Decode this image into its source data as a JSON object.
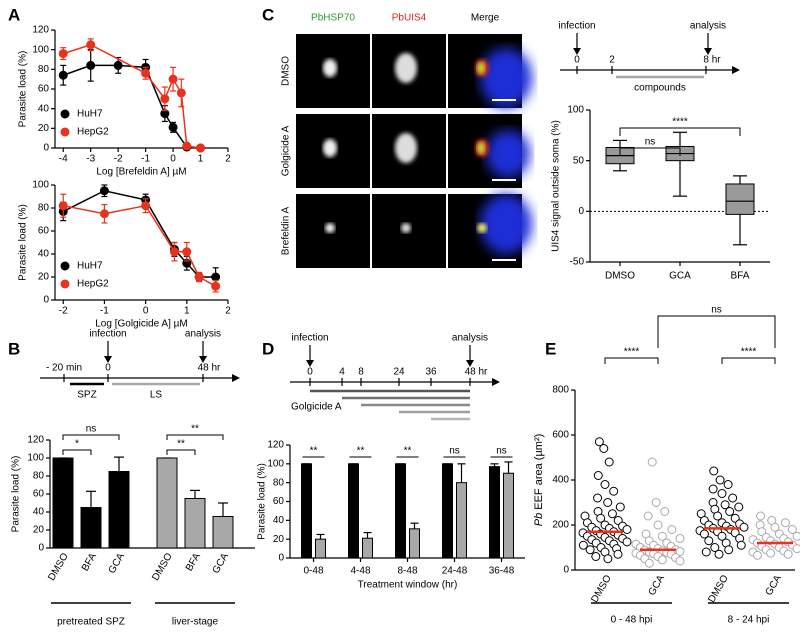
{
  "figure": {
    "panels": [
      "A",
      "B",
      "C",
      "D",
      "E"
    ],
    "images": {
      "columns": [
        "PbHSP70",
        "PbUIS4",
        "Merge"
      ],
      "rows": [
        "DMSO",
        "Golgicide A",
        "Brefeldin A"
      ]
    },
    "timelines": {
      "B": {
        "start": "infection",
        "end": "analysis",
        "ticks": [
          "- 20 min",
          "0",
          "48 hr"
        ],
        "bars": [
          "SPZ",
          "LS"
        ]
      },
      "C": {
        "start": "infection",
        "end": "analysis",
        "ticks": [
          "0",
          "2",
          "8 hr"
        ],
        "bars": [
          "compounds"
        ]
      },
      "D": {
        "start": "infection",
        "end": "analysis",
        "ticks": [
          "0",
          "4",
          "8",
          "24",
          "36",
          "48 hr"
        ],
        "bars": [
          "Golgicide A"
        ]
      }
    }
  },
  "chart_data": [
    {
      "type": "line",
      "x_label": "Log [Brefeldin A] µM",
      "y_label": "Parasite load (%)",
      "xlim": [
        -4.3,
        2
      ],
      "xticks": [
        -4,
        -3,
        -2,
        -1,
        0,
        1,
        2
      ],
      "ylim": [
        0,
        120
      ],
      "yticks": [
        0,
        20,
        40,
        60,
        80,
        100,
        120
      ],
      "legend": "lower-left",
      "series": [
        {
          "name": "HuH7",
          "color": "#000000",
          "x": [
            -4,
            -3,
            -2,
            -1,
            -0.3,
            0,
            0.5,
            1
          ],
          "values": [
            74,
            84,
            84,
            82,
            35,
            21,
            1,
            0
          ],
          "errors": [
            10,
            16,
            8,
            8,
            8,
            5,
            1,
            1
          ]
        },
        {
          "name": "HepG2",
          "color": "#e8321e",
          "x": [
            -4,
            -3,
            -1,
            -0.3,
            0,
            0.3,
            0.5,
            1
          ],
          "values": [
            96,
            105,
            76,
            50,
            70,
            56,
            2,
            0
          ],
          "errors": [
            6,
            6,
            6,
            12,
            12,
            14,
            2,
            1
          ]
        }
      ]
    },
    {
      "type": "line",
      "x_label": "Log [Golgicide A] µM",
      "y_label": "Parasite load (%)",
      "xlim": [
        -2.2,
        2
      ],
      "xticks": [
        -2,
        -1,
        0,
        1,
        2
      ],
      "ylim": [
        0,
        100
      ],
      "yticks": [
        0,
        20,
        40,
        60,
        80,
        100
      ],
      "legend": "lower-left",
      "series": [
        {
          "name": "HuH7",
          "color": "#000000",
          "x": [
            -2,
            -1,
            0,
            0.7,
            1,
            1.3,
            1.7
          ],
          "values": [
            77,
            95,
            87,
            44,
            32,
            20,
            20
          ],
          "errors": [
            8,
            5,
            5,
            6,
            6,
            3,
            8
          ]
        },
        {
          "name": "HepG2",
          "color": "#e8321e",
          "x": [
            -2,
            -1,
            0,
            0.7,
            1,
            1.3,
            1.7
          ],
          "values": [
            82,
            75,
            82,
            42,
            42,
            20,
            12
          ],
          "errors": [
            10,
            8,
            6,
            8,
            8,
            4,
            5
          ]
        }
      ]
    },
    {
      "type": "box",
      "y_label": "UIS4 signal outside soma (%)",
      "categories": [
        "DMSO",
        "GCA",
        "BFA"
      ],
      "ylim": [
        -50,
        100
      ],
      "yticks": [
        -50,
        0,
        50,
        100
      ],
      "color": "#9a9a9a",
      "zero_line": true,
      "boxes": [
        {
          "min": 40,
          "q1": 47,
          "median": 55,
          "q3": 63,
          "max": 70
        },
        {
          "min": 15,
          "q1": 50,
          "median": 57,
          "q3": 64,
          "max": 78
        },
        {
          "min": -33,
          "q1": -3,
          "median": 10,
          "q3": 27,
          "max": 35
        }
      ],
      "annotations": [
        "ns",
        "****"
      ]
    },
    {
      "type": "bar",
      "y_label": "Parasite load (%)",
      "categories": [
        "DMSO",
        "BFA",
        "GCA",
        "DMSO",
        "BFA",
        "GCA"
      ],
      "values": [
        100,
        45,
        85,
        100,
        55,
        35
      ],
      "errors": [
        0,
        18,
        16,
        0,
        9,
        15
      ],
      "colors": [
        "#000000",
        "#000000",
        "#000000",
        "#a8a8a8",
        "#a8a8a8",
        "#a8a8a8"
      ],
      "ylim": [
        0,
        120
      ],
      "yticks": [
        0,
        20,
        40,
        60,
        80,
        100,
        120
      ],
      "groups": [
        "pretreated SPZ",
        "liver-stage"
      ],
      "annotations": [
        "*",
        "ns",
        "**",
        "**"
      ]
    },
    {
      "type": "grouped-bar",
      "x_label": "Treatment window (hr)",
      "y_label": "Parasite load (%)",
      "categories": [
        "0-48",
        "4-48",
        "8-48",
        "24-48",
        "36-48"
      ],
      "series": [
        {
          "color": "#000000",
          "values": [
            100,
            100,
            100,
            100,
            97
          ],
          "errors": [
            0,
            0,
            0,
            0,
            3
          ]
        },
        {
          "color": "#a8a8a8",
          "values": [
            20,
            21,
            31,
            80,
            90
          ],
          "errors": [
            5,
            6,
            6,
            20,
            12
          ]
        }
      ],
      "ylim": [
        0,
        120
      ],
      "yticks": [
        0,
        20,
        40,
        60,
        80,
        100,
        120
      ],
      "annotations": [
        "**",
        "**",
        "**",
        "ns",
        "ns"
      ]
    },
    {
      "type": "dot",
      "y_label_italic": "Pb",
      "y_label": " EEF area (µm²)",
      "categories": [
        "DMSO",
        "GCA",
        "DMSO",
        "GCA"
      ],
      "colors": [
        "#000000",
        "#a8a8a8",
        "#000000",
        "#a8a8a8"
      ],
      "mean_color": "#e8321e",
      "groups": [
        "0 - 48 hpi",
        "8 - 24 hpi"
      ],
      "ylim": [
        0,
        800
      ],
      "yticks": [
        0,
        200,
        400,
        600,
        800
      ],
      "means": [
        170,
        90,
        185,
        120
      ],
      "values": [
        [
          570,
          540,
          480,
          420,
          380,
          350,
          320,
          300,
          280,
          260,
          250,
          240,
          230,
          220,
          210,
          200,
          195,
          190,
          185,
          180,
          175,
          170,
          165,
          160,
          155,
          150,
          145,
          140,
          135,
          130,
          125,
          120,
          115,
          110,
          100,
          95,
          90,
          80,
          70,
          60,
          50
        ],
        [
          480,
          300,
          260,
          240,
          200,
          180,
          160,
          150,
          140,
          130,
          120,
          115,
          110,
          105,
          100,
          95,
          90,
          88,
          85,
          82,
          80,
          78,
          75,
          72,
          70,
          65,
          60,
          55,
          50,
          45,
          40,
          30
        ],
        [
          440,
          400,
          380,
          360,
          340,
          320,
          300,
          290,
          280,
          270,
          260,
          250,
          240,
          230,
          220,
          210,
          205,
          200,
          195,
          190,
          185,
          180,
          175,
          170,
          165,
          160,
          150,
          140,
          130,
          120,
          110,
          100,
          90,
          80,
          70
        ],
        [
          240,
          220,
          210,
          200,
          190,
          180,
          170,
          160,
          150,
          145,
          140,
          135,
          130,
          125,
          120,
          115,
          110,
          105,
          100,
          95,
          90,
          85,
          80,
          75,
          70,
          65
        ]
      ],
      "annotations": [
        "****",
        "****",
        "ns"
      ]
    }
  ]
}
